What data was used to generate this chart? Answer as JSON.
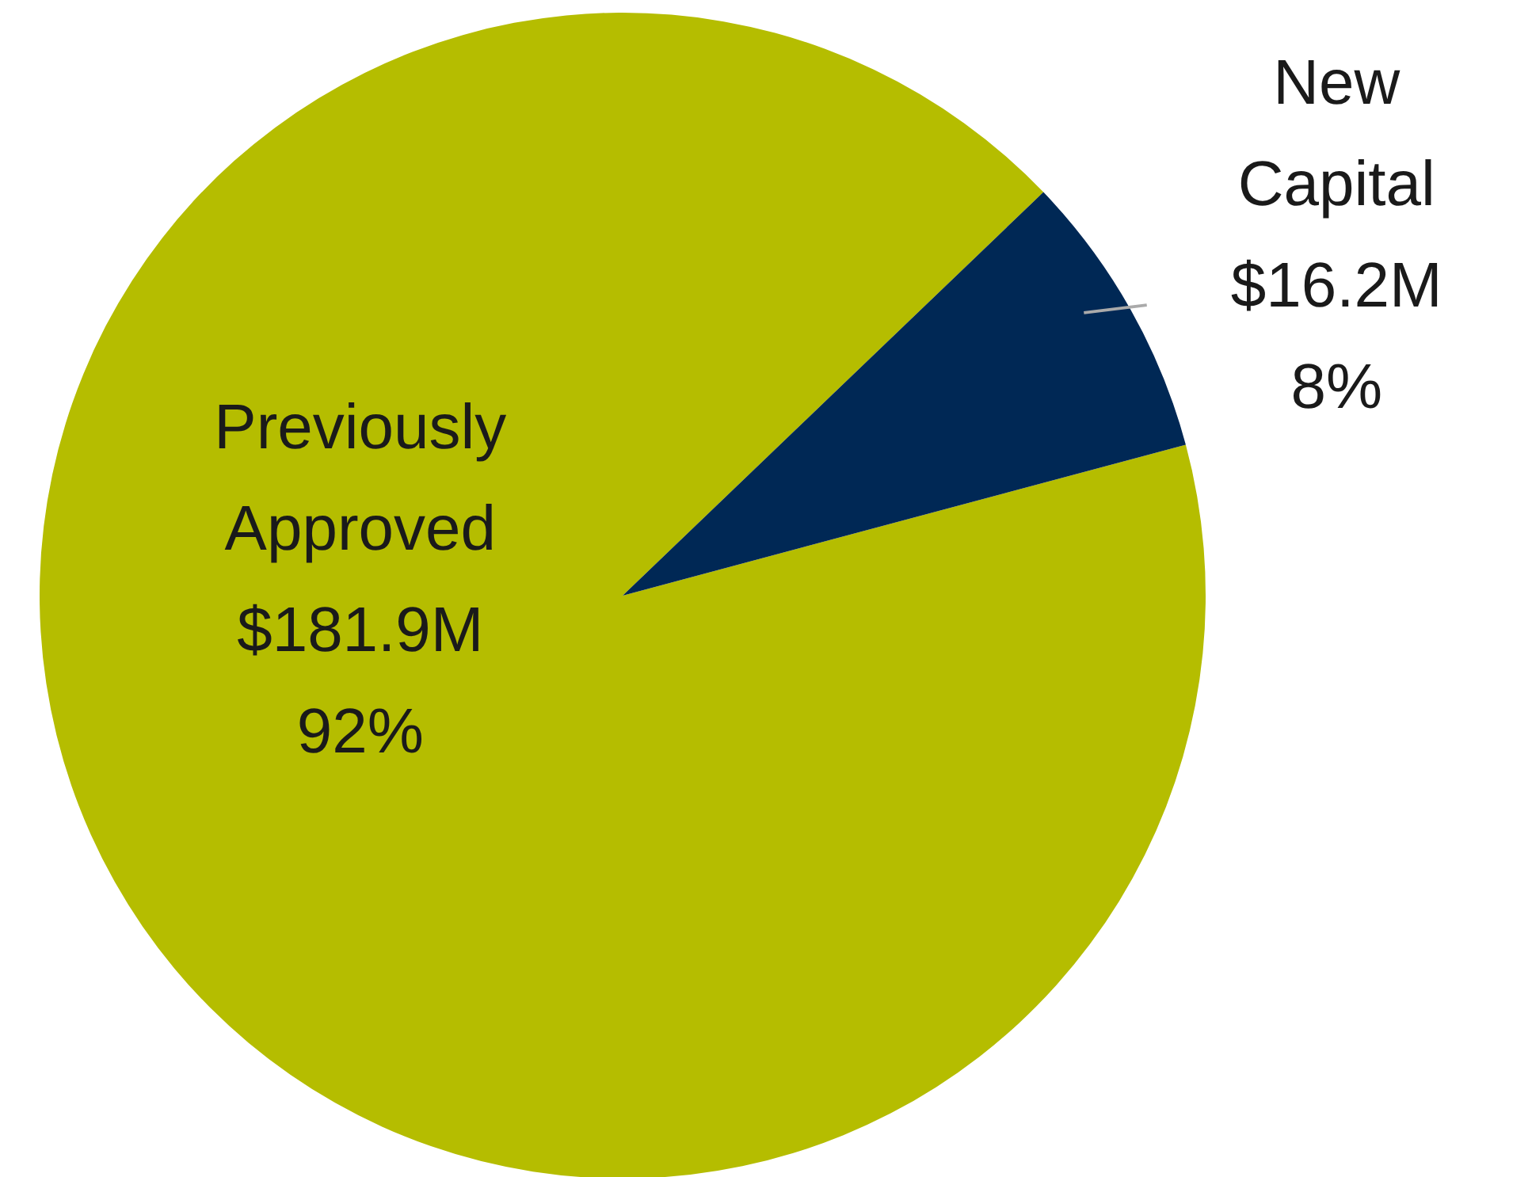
{
  "chart_data": {
    "type": "pie",
    "categories": [
      "Previously Approved",
      "New Capital"
    ],
    "values": [
      92,
      8
    ],
    "colors": [
      "#b5bd00",
      "#002855"
    ],
    "value_labels": [
      "$181.9M\n92%",
      "$16.2M\n8%"
    ],
    "legend": false
  }
}
